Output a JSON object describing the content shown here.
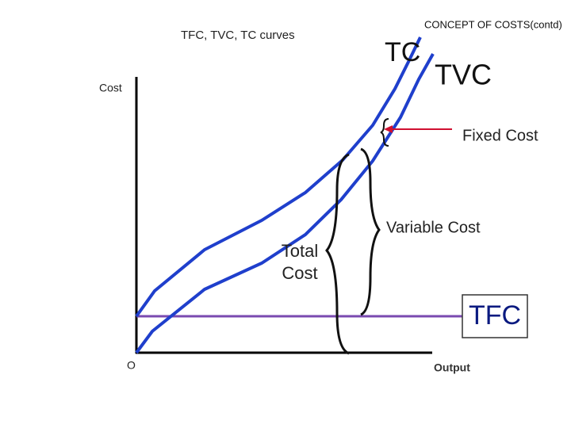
{
  "header": {
    "title": "CONCEPT OF COSTS(contd)",
    "subtitle": "TFC, TVC, TC curves"
  },
  "axes": {
    "y_label": "Cost",
    "x_label": "Output",
    "origin": "O"
  },
  "curves": {
    "tc": "TC",
    "tvc": "TVC",
    "tfc": "TFC"
  },
  "annotations": {
    "fixed_cost": "Fixed Cost",
    "variable_cost": "Variable Cost",
    "total_cost": "Total Cost"
  }
}
